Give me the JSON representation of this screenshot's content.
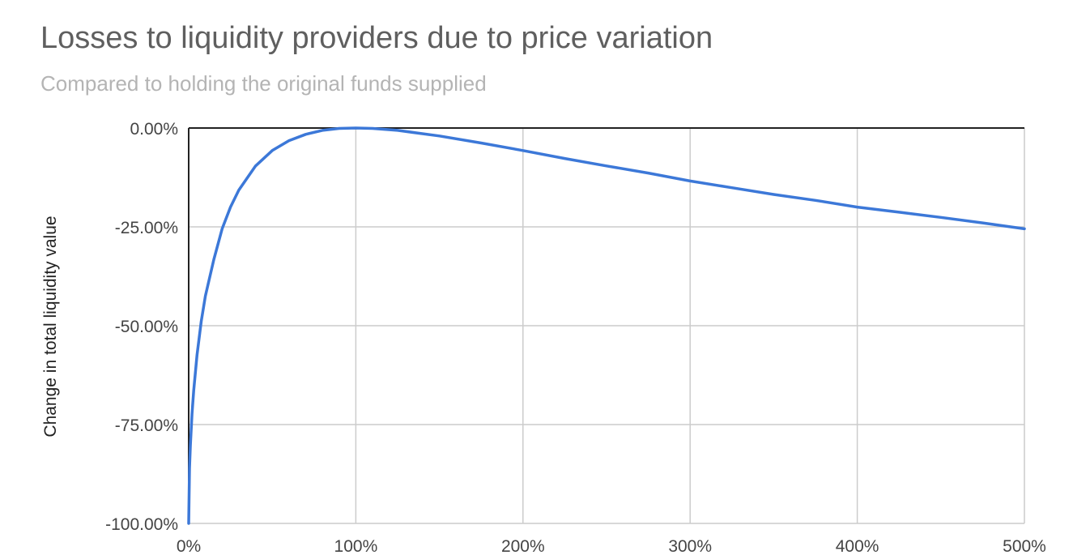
{
  "chart_data": {
    "type": "line",
    "title": "Losses to liquidity providers due to price variation",
    "subtitle": "Compared to holding the original funds supplied",
    "xlabel": "",
    "ylabel": "Change in total liquidity value",
    "xlim": [
      0,
      500
    ],
    "ylim": [
      -100,
      0
    ],
    "x_ticks": [
      {
        "value": 0,
        "label": "0%"
      },
      {
        "value": 100,
        "label": "100%"
      },
      {
        "value": 200,
        "label": "200%"
      },
      {
        "value": 300,
        "label": "300%"
      },
      {
        "value": 400,
        "label": "400%"
      },
      {
        "value": 500,
        "label": "500%"
      }
    ],
    "y_ticks": [
      {
        "value": 0,
        "label": "0.00%"
      },
      {
        "value": -25,
        "label": "-25.00%"
      },
      {
        "value": -50,
        "label": "-50.00%"
      },
      {
        "value": -75,
        "label": "-75.00%"
      },
      {
        "value": -100,
        "label": "-100.00%"
      }
    ],
    "grid": true,
    "line_color": "#3c78d8",
    "series": [
      {
        "x": [
          0,
          0.5,
          1,
          2,
          3,
          5,
          7.5,
          10,
          15,
          20,
          25,
          30,
          40,
          50,
          60,
          70,
          80,
          90,
          100,
          110,
          125,
          150,
          175,
          200,
          225,
          250,
          275,
          300,
          325,
          350,
          375,
          400,
          425,
          450,
          475,
          500
        ],
        "values": [
          -100,
          -86.1,
          -80.2,
          -72.3,
          -66.4,
          -57.4,
          -48.9,
          -42.5,
          -33.3,
          -25.5,
          -20.0,
          -15.7,
          -9.6,
          -5.7,
          -3.2,
          -1.6,
          -0.6,
          -0.1,
          0,
          -0.1,
          -0.6,
          -2.0,
          -3.8,
          -5.7,
          -7.7,
          -9.6,
          -11.4,
          -13.4,
          -15.1,
          -16.8,
          -18.3,
          -20.0,
          -21.3,
          -22.6,
          -24.0,
          -25.5
        ]
      }
    ]
  }
}
